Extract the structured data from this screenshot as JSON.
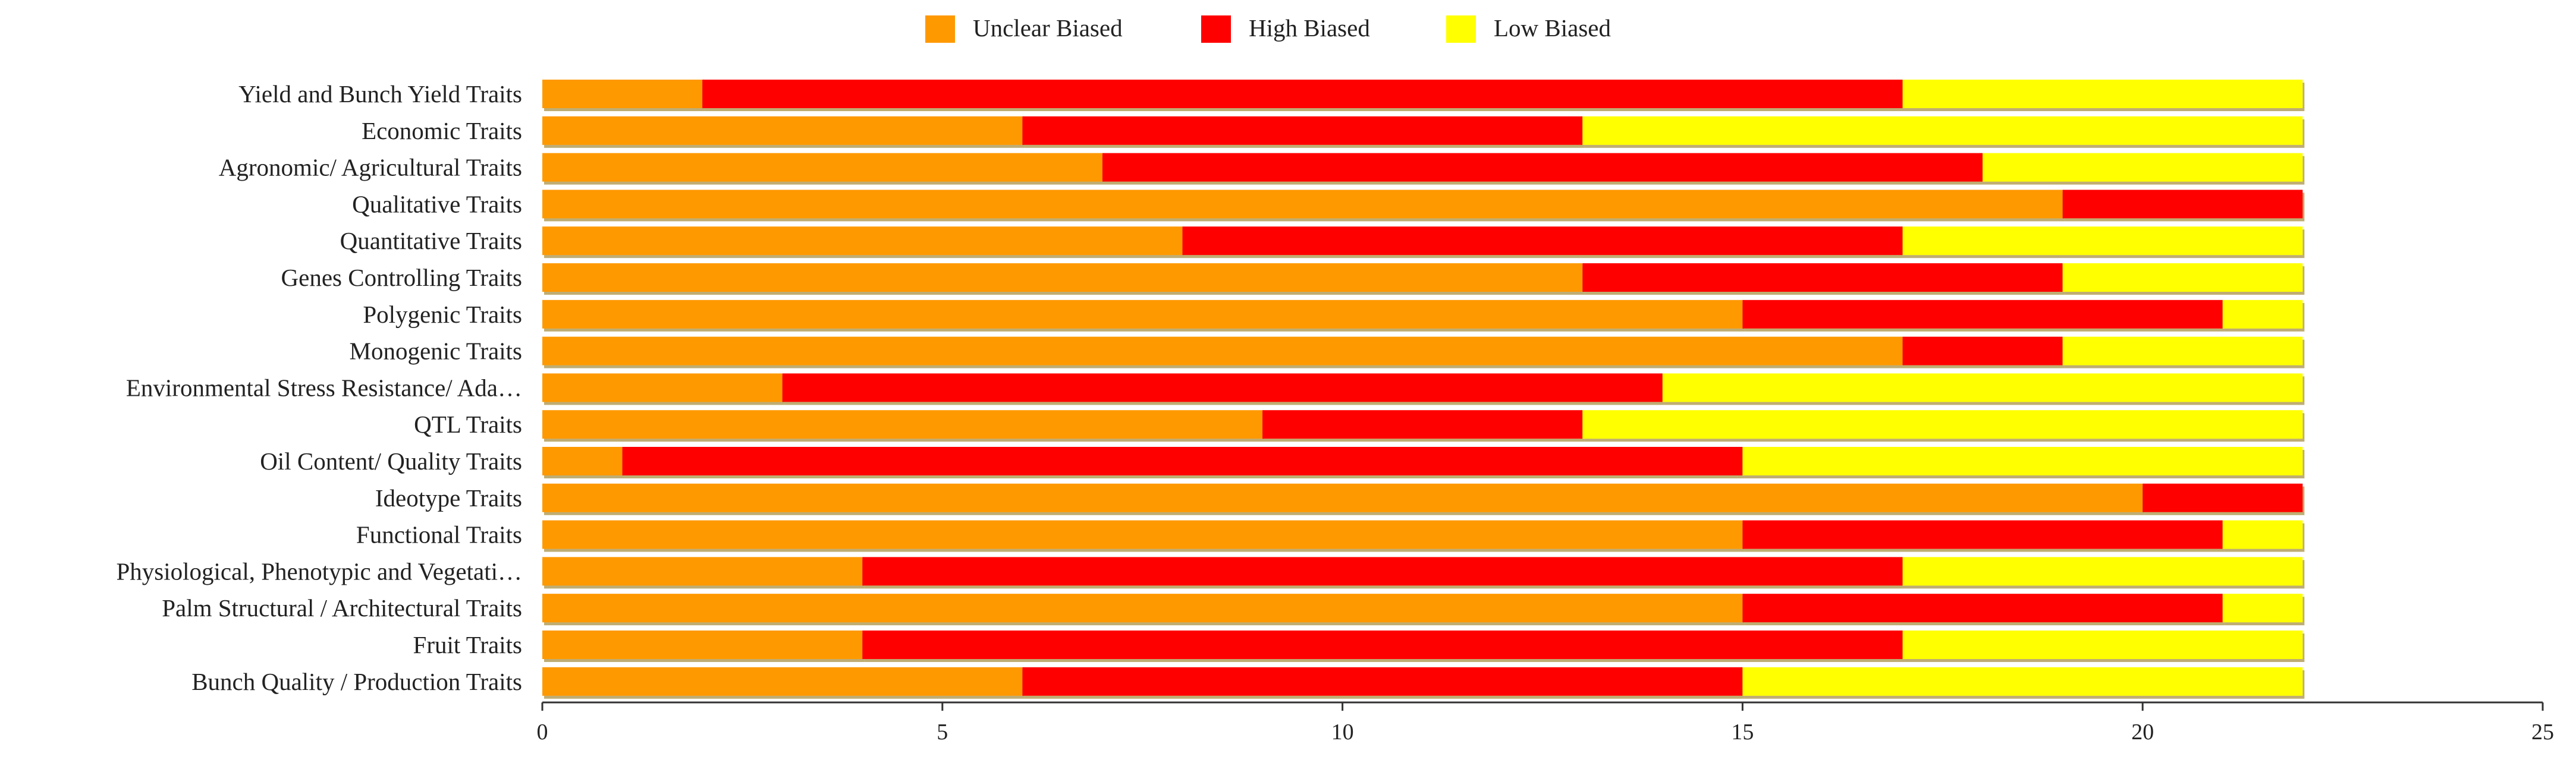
{
  "chart_data": {
    "type": "bar",
    "orientation": "horizontal",
    "stacked": true,
    "categories": [
      "Yield and Bunch Yield Traits",
      "Economic Traits",
      "Agronomic/ Agricultural Traits",
      "Qualitative  Traits",
      "Quantitative Traits",
      "Genes Controlling Traits",
      "Polygenic Traits",
      "Monogenic Traits",
      "Environmental Stress Resistance/ Ada…",
      "QTL Traits",
      "Oil Content/ Quality Traits",
      "Ideotype Traits",
      "Functional Traits",
      "Physiological, Phenotypic and Vegetati…",
      "Palm Structural / Architectural Traits",
      "Fruit Traits",
      "Bunch Quality / Production Traits"
    ],
    "series": [
      {
        "name": "Unclear Biased",
        "color": "#FF9900",
        "values": [
          2,
          6,
          7,
          19,
          8,
          13,
          15,
          17,
          3,
          9,
          1,
          20,
          15,
          4,
          15,
          4,
          6
        ]
      },
      {
        "name": "High Biased",
        "color": "#FF0000",
        "values": [
          15,
          7,
          11,
          3,
          9,
          6,
          6,
          2,
          11,
          4,
          14,
          2,
          6,
          13,
          6,
          13,
          9
        ]
      },
      {
        "name": "Low Biased",
        "color": "#FFFF00",
        "values": [
          5,
          9,
          4,
          0,
          5,
          3,
          1,
          3,
          8,
          9,
          7,
          0,
          1,
          5,
          1,
          5,
          7
        ]
      }
    ],
    "xlim": [
      0,
      25
    ],
    "xticks": [
      0,
      5,
      10,
      15,
      20,
      25
    ],
    "title": "",
    "xlabel": "",
    "ylabel": "",
    "legend_position": "top-center",
    "grid": false
  }
}
